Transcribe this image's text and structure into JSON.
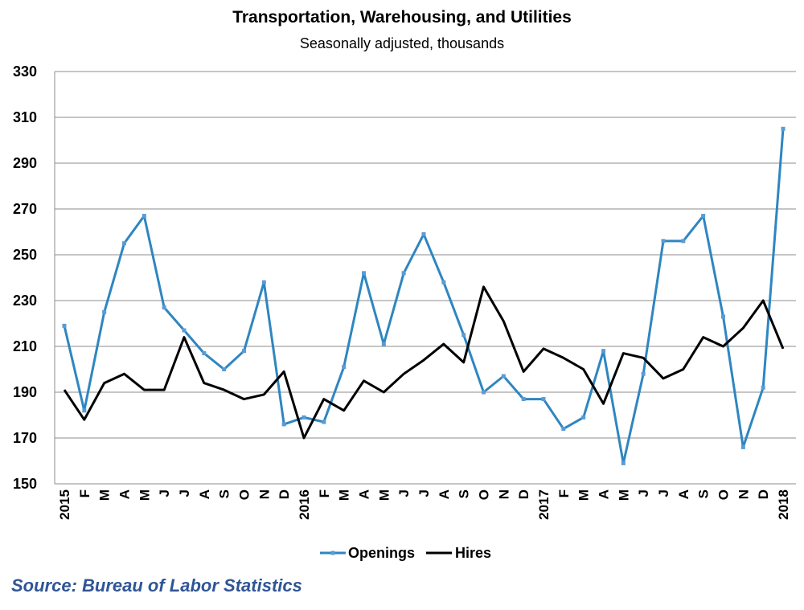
{
  "chart_data": {
    "type": "line",
    "title": "Transportation, Warehousing, and Utilities",
    "subtitle": "Seasonally adjusted, thousands",
    "categories": [
      "2015",
      "F",
      "M",
      "A",
      "M",
      "J",
      "J",
      "A",
      "S",
      "O",
      "N",
      "D",
      "2016",
      "F",
      "M",
      "A",
      "M",
      "J",
      "J",
      "A",
      "S",
      "O",
      "N",
      "D",
      "2017",
      "F",
      "M",
      "A",
      "M",
      "J",
      "J",
      "A",
      "S",
      "O",
      "N",
      "D",
      "2018"
    ],
    "ylim": [
      150,
      330
    ],
    "yticks": [
      150,
      170,
      190,
      210,
      230,
      250,
      270,
      290,
      310,
      330
    ],
    "grid": true,
    "legend": "bottom",
    "series": [
      {
        "name": "Openings",
        "color": "#2e86c1",
        "values": [
          219,
          182,
          225,
          255,
          267,
          227,
          217,
          207,
          200,
          208,
          238,
          176,
          179,
          177,
          201,
          242,
          211,
          242,
          259,
          238,
          215,
          190,
          197,
          187,
          187,
          174,
          179,
          208,
          159,
          198,
          256,
          256,
          267,
          223,
          166,
          192,
          305
        ]
      },
      {
        "name": "Hires",
        "color": "#000000",
        "values": [
          191,
          178,
          194,
          198,
          191,
          191,
          214,
          194,
          191,
          187,
          189,
          199,
          170,
          187,
          182,
          195,
          190,
          198,
          204,
          211,
          203,
          236,
          221,
          199,
          209,
          205,
          200,
          185,
          207,
          205,
          196,
          200,
          214,
          210,
          218,
          230,
          209
        ]
      }
    ]
  },
  "source": "Source: Bureau of Labor Statistics"
}
